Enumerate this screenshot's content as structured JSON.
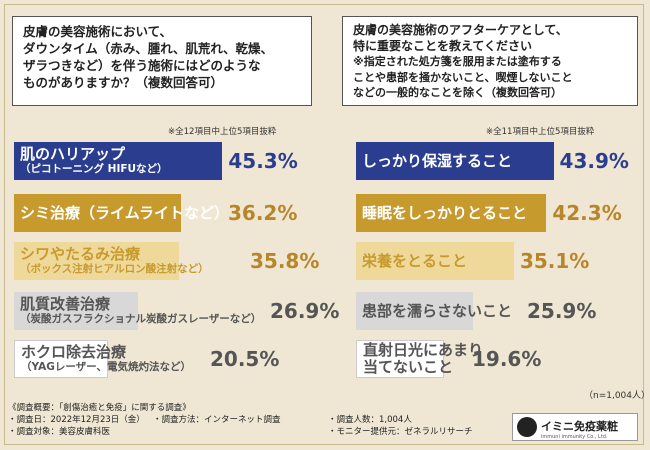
{
  "left": {
    "question": "皮膚の美容施術において、ダウンタイム（赤み、腫れ、肌荒れ、乾燥、ザラつきなど）を伴う施術にはどのようなものがありますか？（複数回答可）",
    "q_line1": "皮膚の美容施術において、",
    "q_line2": "ダウンタイム（赤み、腫れ、肌荒れ、乾燥、",
    "q_line3": "ザラつきなど）を伴う施術にはどのような",
    "q_line4": "ものがありますか？（複数回答可）",
    "note": "※全12項目中上位5項目抜粋",
    "items": [
      {
        "label": "肌のハリアップ",
        "sub": "（ピコトーニング HIFUなど）",
        "pct": "45.3%",
        "pct_num": "45.3",
        "bg": "#2b3d8f",
        "fg": "#ffffff",
        "pct_color": "#2b3d8f"
      },
      {
        "label": "シミ治療（ライムライトなど）",
        "sub": "",
        "pct": "36.2%",
        "pct_num": "36.2",
        "bg": "#c79a2e",
        "fg": "#ffffff",
        "pct_color": "#b8862a"
      },
      {
        "label": "シワやたるみ治療",
        "sub": "（ボックス注射ヒアルロン酸注射など）",
        "pct": "35.8%",
        "pct_num": "35.8",
        "bg": "#efd99a",
        "fg": "#c79a2e",
        "pct_color": "#b8862a"
      },
      {
        "label": "肌質改善治療",
        "sub": "（炭酸ガスフラクショナル炭酸ガスレーザーなど）",
        "pct": "26.9%",
        "pct_num": "26.9",
        "bg": "#d8d8d8",
        "fg": "#555555",
        "pct_color": "#555555"
      },
      {
        "label": "ホクロ除去治療",
        "sub": "（YAGレーザー、電気焼灼法など）",
        "pct": "20.5%",
        "pct_num": "20.5",
        "bg": "#ffffff",
        "fg": "#555555",
        "pct_color": "#555555"
      }
    ]
  },
  "right": {
    "q_line1": "皮膚の美容施術のアフターケアとして、",
    "q_line2": "特に重要なことを教えてください",
    "q_line3": "※指定された処方箋を服用または塗布する",
    "q_line4": "ことや患部を掻かないこと、喫煙しないこと",
    "q_line5": "などの一般的なことを除く（複数回答可）",
    "note": "※全11項目中上位5項目抜粋",
    "n": "（n=1,004人）",
    "items": [
      {
        "label": "しっかり保湿すること",
        "sub": "",
        "pct": "43.9%",
        "pct_num": "43.9",
        "bg": "#2b3d8f",
        "fg": "#ffffff",
        "pct_color": "#2b3d8f"
      },
      {
        "label": "睡眠をしっかりとること",
        "sub": "",
        "pct": "42.3%",
        "pct_num": "42.3",
        "bg": "#c79a2e",
        "fg": "#ffffff",
        "pct_color": "#b8862a"
      },
      {
        "label": "栄養をとること",
        "sub": "",
        "pct": "35.1%",
        "pct_num": "35.1",
        "bg": "#efd99a",
        "fg": "#c79a2e",
        "pct_color": "#b8862a"
      },
      {
        "label": "患部を濡らさないこと",
        "sub": "",
        "pct": "25.9%",
        "pct_num": "25.9",
        "bg": "#d8d8d8",
        "fg": "#555555",
        "pct_color": "#555555"
      },
      {
        "label": "直射日光にあまり",
        "sub": "当てないこと",
        "pct": "19.6%",
        "pct_num": "19.6",
        "bg": "#ffffff",
        "fg": "#555555",
        "pct_color": "#555555"
      }
    ]
  },
  "footer": {
    "title": "《調査概要：「創傷治癒と免疫」に関する調査》",
    "date": "・調査日：2022年12月23日（金）",
    "method": "・調査方法：インターネット調査",
    "count": "・調査人数：1,004人",
    "target": "・調査対象：美容皮膚科医",
    "provider": "・モニター提供元：ゼネラルリサーチ"
  },
  "logo": {
    "name": "イミニ免疫薬粧",
    "sub": "immuni immunity Co., Ltd."
  },
  "chart_data": [
    {
      "type": "bar",
      "title": "皮膚の美容施術において、ダウンタイム（赤み、腫れ、肌荒れ、乾燥、ザラつきなど）を伴う施術にはどのようなものがありますか？（複数回答可）",
      "categories": [
        "肌のハリアップ（ピコトーニング HIFUなど）",
        "シミ治療（ライムライトなど）",
        "シワやたるみ治療（ボックス注射ヒアルロン酸注射など）",
        "肌質改善治療（炭酸ガスフラクショナル炭酸ガスレーザーなど）",
        "ホクロ除去治療（YAGレーザー、電気焼灼法など）"
      ],
      "values": [
        45.3,
        36.2,
        35.8,
        26.9,
        20.5
      ]
    },
    {
      "type": "bar",
      "title": "皮膚の美容施術のアフターケアとして、特に重要なことを教えてください",
      "categories": [
        "しっかり保湿すること",
        "睡眠をしっかりとること",
        "栄養をとること",
        "患部を濡らさないこと",
        "直射日光にあまり当てないこと"
      ],
      "values": [
        43.9,
        42.3,
        35.1,
        25.9,
        19.6
      ]
    }
  ]
}
